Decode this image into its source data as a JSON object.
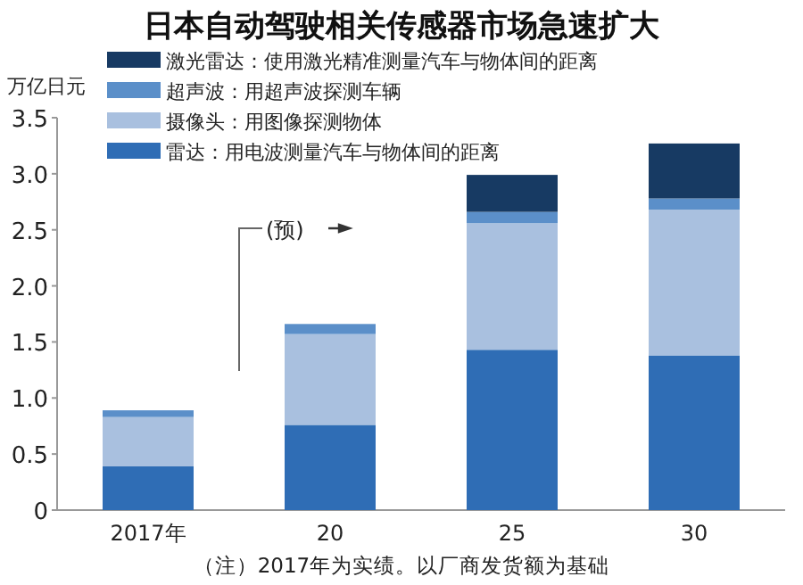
{
  "chart_data": {
    "type": "bar",
    "title": "日本自动驾驶相关传感器市场急速扩大",
    "ylabel": "万亿日元",
    "categories": [
      "2017年",
      "20",
      "25",
      "30"
    ],
    "stacked": true,
    "series": [
      {
        "name": "雷达：用电波测量汽车与物体间的距离",
        "color": "#2f6db5",
        "values": [
          0.39,
          0.76,
          1.43,
          1.38
        ]
      },
      {
        "name": "摄像头：用图像探测物体",
        "color": "#a9c0df",
        "values": [
          0.44,
          0.81,
          1.13,
          1.3
        ]
      },
      {
        "name": "超声波：用超声波探测车辆",
        "color": "#5b8fc9",
        "values": [
          0.06,
          0.09,
          0.1,
          0.1
        ]
      },
      {
        "name": "激光雷达：使用激光精准测量汽车与物体间的距离",
        "color": "#173a63",
        "values": [
          0,
          0,
          0.33,
          0.49
        ]
      }
    ],
    "ylim": [
      0,
      3.5
    ],
    "yticks": [
      0,
      0.5,
      {
        "value": 1,
        "label": "1.0"
      },
      1.5,
      {
        "value": 2,
        "label": "2.0"
      },
      2.5,
      {
        "value": 3,
        "label": "3.0"
      },
      3.5
    ],
    "grid": false,
    "legend": "top left",
    "annotations": [
      "(预)",
      "（注）2017年为实绩。以厂商发货额为基础"
    ]
  }
}
